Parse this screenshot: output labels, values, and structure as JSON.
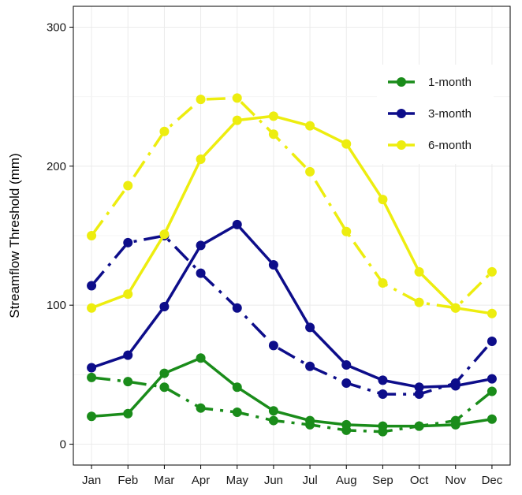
{
  "chart_data": {
    "type": "line",
    "title": "",
    "xlabel": "",
    "ylabel": "Streamflow Threshold (mm)",
    "categories": [
      "Jan",
      "Feb",
      "Mar",
      "Apr",
      "May",
      "Jun",
      "Jul",
      "Aug",
      "Sep",
      "Oct",
      "Nov",
      "Dec"
    ],
    "ylim": [
      -15,
      315
    ],
    "yticks": [
      0,
      100,
      200,
      300
    ],
    "grid": true,
    "legend_position": "top-right",
    "legend": [
      {
        "label": "1-month",
        "color": "#1a8c1a"
      },
      {
        "label": "3-month",
        "color": "#0d0d8a"
      },
      {
        "label": "6-month",
        "color": "#eded0f"
      }
    ],
    "series": [
      {
        "name": "1-month",
        "style": "solid",
        "color": "#1a8c1a",
        "values": [
          20,
          22,
          51,
          62,
          41,
          24,
          17,
          14,
          13,
          13,
          14,
          18
        ]
      },
      {
        "name": "1-month",
        "style": "dashed",
        "color": "#1a8c1a",
        "values": [
          48,
          45,
          41,
          26,
          23,
          17,
          14,
          10,
          9,
          13,
          17,
          38
        ]
      },
      {
        "name": "3-month",
        "style": "solid",
        "color": "#0d0d8a",
        "values": [
          55,
          64,
          99,
          143,
          158,
          129,
          84,
          57,
          46,
          41,
          42,
          47
        ]
      },
      {
        "name": "3-month",
        "style": "dashed",
        "color": "#0d0d8a",
        "values": [
          114,
          145,
          150,
          123,
          98,
          71,
          56,
          44,
          36,
          36,
          44,
          74
        ]
      },
      {
        "name": "6-month",
        "style": "solid",
        "color": "#eded0f",
        "values": [
          98,
          108,
          151,
          205,
          233,
          236,
          229,
          216,
          176,
          124,
          98,
          94
        ]
      },
      {
        "name": "6-month",
        "style": "dashed",
        "color": "#eded0f",
        "values": [
          150,
          186,
          225,
          248,
          249,
          223,
          196,
          153,
          116,
          102,
          98,
          124
        ]
      }
    ]
  }
}
